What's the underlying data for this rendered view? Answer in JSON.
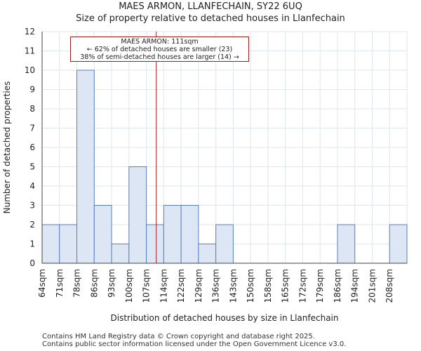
{
  "chart_data": {
    "type": "bar",
    "title": "MAES ARMON, LLANFECHAIN, SY22 6UQ",
    "subtitle": "Size of property relative to detached houses in Llanfechain",
    "xlabel": "Distribution of detached houses by size in Llanfechain",
    "ylabel": "Number of detached properties",
    "categories": [
      "64sqm",
      "71sqm",
      "78sqm",
      "86sqm",
      "93sqm",
      "100sqm",
      "107sqm",
      "114sqm",
      "122sqm",
      "129sqm",
      "136sqm",
      "143sqm",
      "150sqm",
      "158sqm",
      "165sqm",
      "172sqm",
      "179sqm",
      "186sqm",
      "194sqm",
      "201sqm",
      "208sqm"
    ],
    "values": [
      2,
      2,
      10,
      3,
      1,
      5,
      2,
      3,
      3,
      1,
      2,
      0,
      0,
      0,
      0,
      0,
      0,
      2,
      0,
      0,
      2
    ],
    "ylim": [
      0,
      12
    ],
    "yticks": [
      0,
      1,
      2,
      3,
      4,
      5,
      6,
      7,
      8,
      9,
      10,
      11,
      12
    ],
    "marker_value": 111,
    "bar_color": "#dce6f5",
    "bar_edge_color": "#5a7fc0",
    "marker_color": "#9b1c1c",
    "grid_color": "#dfe6ef",
    "annotation": {
      "line1": "MAES ARMON: 111sqm",
      "line2": "← 62% of detached houses are smaller (23)",
      "line3": "38% of semi-detached houses are larger (14) →"
    }
  },
  "footer": {
    "line1": "Contains HM Land Registry data © Crown copyright and database right 2025.",
    "line2": "Contains public sector information licensed under the Open Government Licence v3.0."
  }
}
